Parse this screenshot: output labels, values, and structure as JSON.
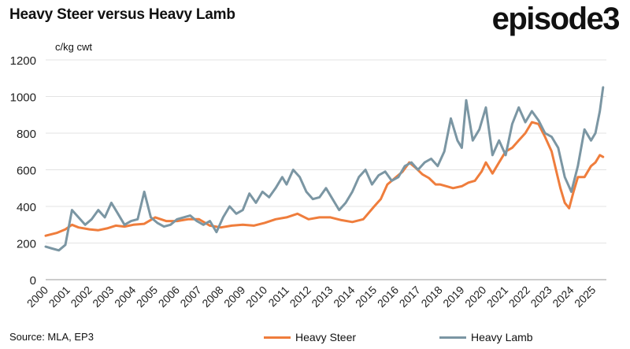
{
  "header": {
    "title": "Heavy Steer versus Heavy Lamb",
    "brand": "episode3"
  },
  "footer": {
    "source": "Source: MLA, EP3"
  },
  "chart_data": {
    "type": "line",
    "title": "Heavy Steer versus Heavy Lamb",
    "xlabel": "",
    "ylabel": "c/kg cwt",
    "ylim": [
      0,
      1200
    ],
    "xlim": [
      2000,
      2025.6
    ],
    "yticks": [
      "0",
      "200",
      "400",
      "600",
      "800",
      "1000",
      "1200"
    ],
    "xticks": [
      "2000",
      "2001",
      "2002",
      "2003",
      "2004",
      "2005",
      "2006",
      "2007",
      "2008",
      "2009",
      "2010",
      "2011",
      "2012",
      "2013",
      "2014",
      "2015",
      "2016",
      "2017",
      "2018",
      "2019",
      "2020",
      "2021",
      "2022",
      "2023",
      "2024",
      "2025"
    ],
    "grid": "horizontal",
    "legend_position": "bottom",
    "series": [
      {
        "name": "Heavy Steer",
        "color": "#ef7d3c",
        "x": [
          2000.0,
          2000.5,
          2000.9,
          2001.2,
          2001.5,
          2002.0,
          2002.4,
          2002.8,
          2003.2,
          2003.6,
          2004.0,
          2004.5,
          2005.0,
          2005.5,
          2006.0,
          2006.5,
          2007.0,
          2007.5,
          2008.0,
          2008.5,
          2009.0,
          2009.5,
          2010.0,
          2010.5,
          2011.0,
          2011.5,
          2012.0,
          2012.5,
          2013.0,
          2013.5,
          2014.0,
          2014.5,
          2015.0,
          2015.3,
          2015.6,
          2016.0,
          2016.3,
          2016.6,
          2016.9,
          2017.2,
          2017.5,
          2017.8,
          2018.0,
          2018.3,
          2018.6,
          2019.0,
          2019.3,
          2019.6,
          2019.9,
          2020.1,
          2020.4,
          2020.7,
          2021.0,
          2021.3,
          2021.6,
          2021.9,
          2022.2,
          2022.5,
          2022.8,
          2023.1,
          2023.3,
          2023.5,
          2023.7,
          2023.9,
          2024.1,
          2024.3,
          2024.6,
          2024.9,
          2025.1,
          2025.3,
          2025.45
        ],
        "values": [
          240,
          255,
          275,
          300,
          285,
          275,
          270,
          280,
          295,
          290,
          300,
          305,
          340,
          320,
          320,
          330,
          330,
          295,
          285,
          295,
          300,
          295,
          310,
          330,
          340,
          360,
          330,
          340,
          340,
          325,
          315,
          330,
          400,
          440,
          520,
          560,
          590,
          640,
          610,
          575,
          555,
          520,
          520,
          510,
          500,
          510,
          530,
          540,
          590,
          640,
          580,
          640,
          700,
          720,
          760,
          800,
          860,
          850,
          780,
          700,
          600,
          500,
          420,
          390,
          480,
          560,
          560,
          620,
          640,
          680,
          670
        ]
      },
      {
        "name": "Heavy Lamb",
        "color": "#7b96a3",
        "x": [
          2000.0,
          2000.3,
          2000.6,
          2000.9,
          2001.2,
          2001.5,
          2001.8,
          2002.1,
          2002.4,
          2002.7,
          2003.0,
          2003.3,
          2003.6,
          2003.9,
          2004.2,
          2004.5,
          2004.8,
          2005.1,
          2005.4,
          2005.7,
          2006.0,
          2006.3,
          2006.6,
          2006.9,
          2007.2,
          2007.5,
          2007.8,
          2008.1,
          2008.4,
          2008.7,
          2009.0,
          2009.3,
          2009.6,
          2009.9,
          2010.2,
          2010.5,
          2010.8,
          2011.0,
          2011.3,
          2011.6,
          2011.9,
          2012.2,
          2012.5,
          2012.8,
          2013.1,
          2013.4,
          2013.7,
          2014.0,
          2014.3,
          2014.6,
          2014.9,
          2015.2,
          2015.5,
          2015.8,
          2016.1,
          2016.4,
          2016.7,
          2017.0,
          2017.3,
          2017.6,
          2017.9,
          2018.2,
          2018.5,
          2018.8,
          2019.0,
          2019.2,
          2019.5,
          2019.8,
          2020.1,
          2020.4,
          2020.7,
          2021.0,
          2021.3,
          2021.6,
          2021.9,
          2022.2,
          2022.5,
          2022.8,
          2023.1,
          2023.4,
          2023.7,
          2024.0,
          2024.3,
          2024.6,
          2024.9,
          2025.1,
          2025.3,
          2025.45
        ],
        "values": [
          180,
          170,
          160,
          190,
          380,
          340,
          300,
          330,
          380,
          340,
          420,
          360,
          300,
          320,
          330,
          480,
          340,
          310,
          290,
          300,
          330,
          340,
          350,
          320,
          300,
          320,
          260,
          340,
          400,
          360,
          380,
          470,
          420,
          480,
          450,
          500,
          560,
          520,
          600,
          560,
          480,
          440,
          450,
          500,
          440,
          380,
          420,
          480,
          560,
          600,
          520,
          570,
          590,
          540,
          560,
          620,
          640,
          600,
          640,
          660,
          620,
          700,
          880,
          760,
          720,
          980,
          760,
          820,
          940,
          680,
          760,
          680,
          850,
          940,
          860,
          920,
          870,
          800,
          780,
          720,
          560,
          480,
          620,
          820,
          760,
          800,
          920,
          1050
        ]
      }
    ]
  }
}
